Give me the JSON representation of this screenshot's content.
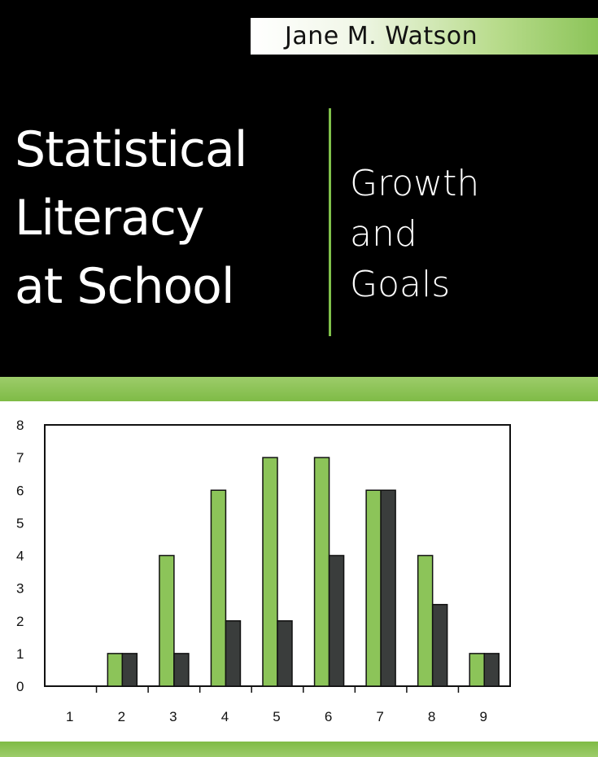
{
  "cover": {
    "author": "Jane M. Watson",
    "title_lines": [
      "Statistical",
      "Literacy",
      "at School"
    ],
    "subtitle_lines": [
      "Growth",
      "and",
      "Goals"
    ]
  },
  "colors": {
    "background": "#000000",
    "accent_green": "#8cc459",
    "bar_green": "#8cc459",
    "bar_dark": "#3a3d3c"
  },
  "chart_data": {
    "type": "bar",
    "categories": [
      "1",
      "2",
      "3",
      "4",
      "5",
      "6",
      "7",
      "8",
      "9"
    ],
    "series": [
      {
        "values": [
          0,
          1,
          4,
          6,
          7,
          7,
          6,
          4,
          1
        ]
      },
      {
        "values": [
          0,
          1,
          1,
          2,
          2,
          4,
          6,
          2.5,
          1
        ]
      }
    ],
    "title": "",
    "xlabel": "",
    "ylabel": "",
    "ylim": [
      0,
      8
    ],
    "yticks": [
      "0",
      "1",
      "2",
      "3",
      "4",
      "5",
      "6",
      "7",
      "8"
    ],
    "grid": false,
    "legend": "none"
  }
}
